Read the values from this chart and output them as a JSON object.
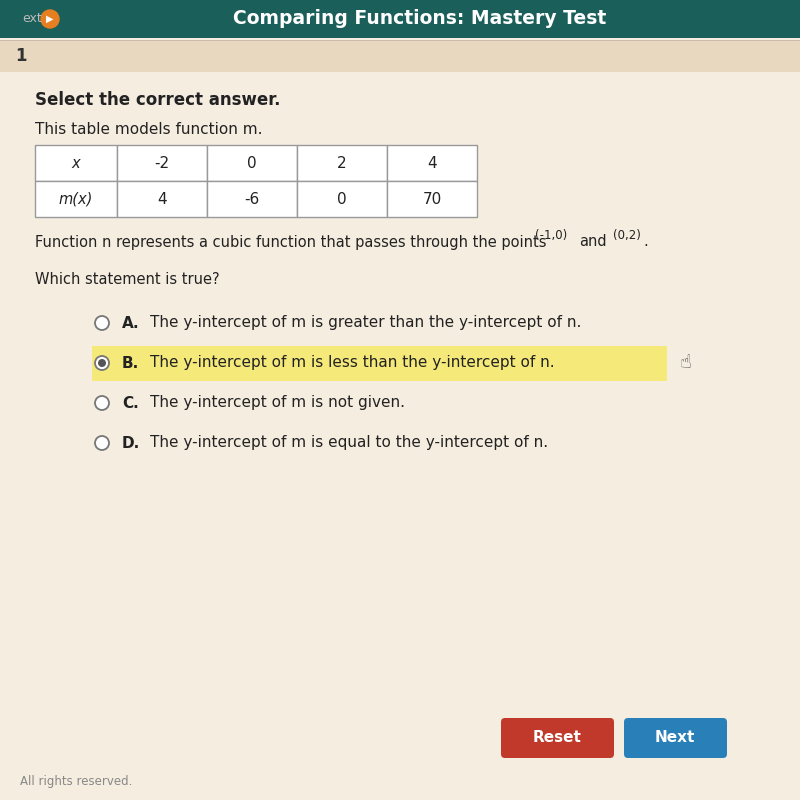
{
  "title": "Comparing Functions: Mastery Test",
  "header_bg": "#1a5f5a",
  "header_text_color": "#ffffff",
  "question_number": "1",
  "question_number_bg": "#e8d8c0",
  "body_bg": "#f5ede0",
  "select_text": "Select the correct answer.",
  "table_intro": "This table models function m.",
  "table_x_label": "x",
  "table_mx_label": "m(x)",
  "table_x_values": [
    "-2",
    "0",
    "2",
    "4"
  ],
  "table_mx_values": [
    "4",
    "-6",
    "0",
    "70"
  ],
  "function_line": "Function n represents a cubic function that passes through the points",
  "point1": "(-1,0)",
  "point2": "(0,2)",
  "which_text": "Which statement is true?",
  "options": [
    {
      "label": "A.",
      "text": "The y-intercept of m is greater than the y-intercept of n."
    },
    {
      "label": "B.",
      "text": "The y-intercept of m is less than the y-intercept of n."
    },
    {
      "label": "C.",
      "text": "The y-intercept of m is not given."
    },
    {
      "label": "D.",
      "text": "The y-intercept of m is equal to the y-intercept of n."
    }
  ],
  "selected_option": 1,
  "selected_bg": "#f5e97a",
  "reset_btn_color": "#c0392b",
  "next_btn_color": "#2980b9",
  "footer_text": "All rights reserved.",
  "footer_text_color": "#888888",
  "header_orange": "#e67e22"
}
